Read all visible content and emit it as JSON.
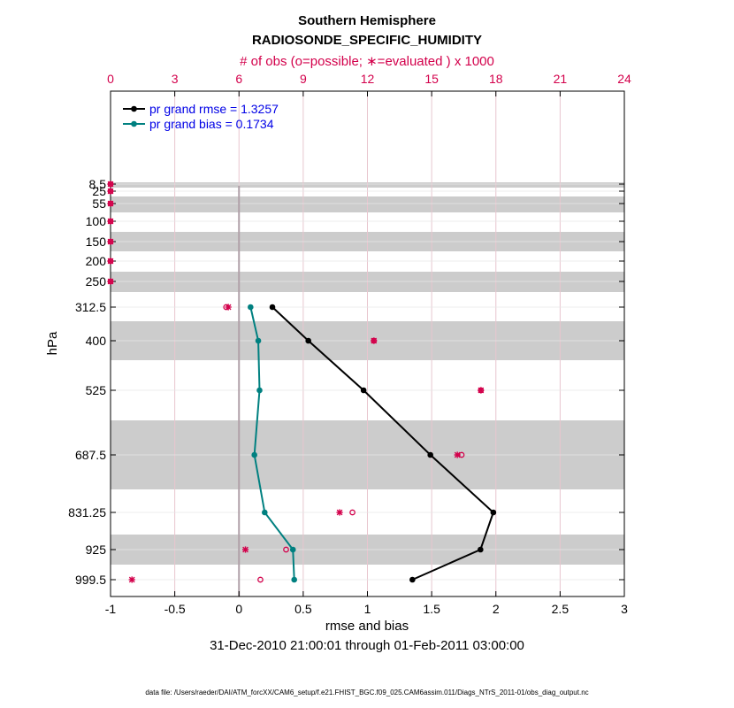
{
  "chart_data": {
    "type": "line",
    "title": "Southern Hemisphere",
    "subtitle": "RADIOSONDE_SPECIFIC_HUMIDITY",
    "xlabel": "rmse and bias",
    "ylabel": "hPa",
    "top_xlabel": "# of obs (o=possible; ∗=evaluated ) x 1000",
    "date_range": "31-Dec-2010 21:00:01 through 01-Feb-2011 03:00:00",
    "footnote": "data file: /Users/raeder/DAI/ATM_forcXX/CAM6_setup/f.e21.FHIST_BGC.f09_025.CAM6assim.011/Diags_NTrS_2011-01/obs_diag_output.nc",
    "xlim": [
      -1,
      3
    ],
    "x_ticks": [
      "-1",
      "-0.5",
      "0",
      "0.5",
      "1",
      "1.5",
      "2",
      "2.5",
      "3"
    ],
    "top_xlim": [
      0,
      24
    ],
    "top_ticks": [
      "0",
      "3",
      "6",
      "9",
      "12",
      "15",
      "18",
      "21",
      "24"
    ],
    "levels": [
      "8.5",
      "25",
      "55",
      "100",
      "150",
      "200",
      "250",
      "312.5",
      "400",
      "525",
      "687.5",
      "831.25",
      "925",
      "999.5"
    ],
    "series": [
      {
        "name": "pr grand rmse = 1.3257",
        "color": "#000000",
        "levels": [
          "312.5",
          "400",
          "525",
          "687.5",
          "831.25",
          "925",
          "999.5"
        ],
        "values": [
          0.26,
          0.54,
          0.97,
          1.49,
          1.98,
          1.88,
          1.35
        ]
      },
      {
        "name": "pr grand bias = 0.1734",
        "color": "#008080",
        "levels": [
          "312.5",
          "400",
          "525",
          "687.5",
          "831.25",
          "925",
          "999.5"
        ],
        "values": [
          0.09,
          0.15,
          0.16,
          0.12,
          0.2,
          0.42,
          0.43
        ]
      }
    ],
    "obs_possible": {
      "marker": "o",
      "color": "#d3004b",
      "levels": [
        "8.5",
        "25",
        "55",
        "100",
        "150",
        "200",
        "250",
        "312.5",
        "400",
        "525",
        "687.5",
        "831.25",
        "925",
        "999.5"
      ],
      "values": [
        0,
        0,
        0,
        0,
        0,
        0,
        0,
        5.4,
        12.3,
        17.3,
        16.4,
        11.3,
        8.2,
        7.0
      ]
    },
    "obs_evaluated": {
      "marker": "*",
      "color": "#d3004b",
      "levels": [
        "8.5",
        "25",
        "55",
        "100",
        "150",
        "200",
        "250",
        "312.5",
        "400",
        "525",
        "687.5",
        "831.25",
        "925",
        "999.5"
      ],
      "values": [
        0,
        0,
        0,
        0,
        0,
        0,
        0,
        5.5,
        12.3,
        17.3,
        16.2,
        10.7,
        6.3,
        1.0
      ]
    }
  }
}
